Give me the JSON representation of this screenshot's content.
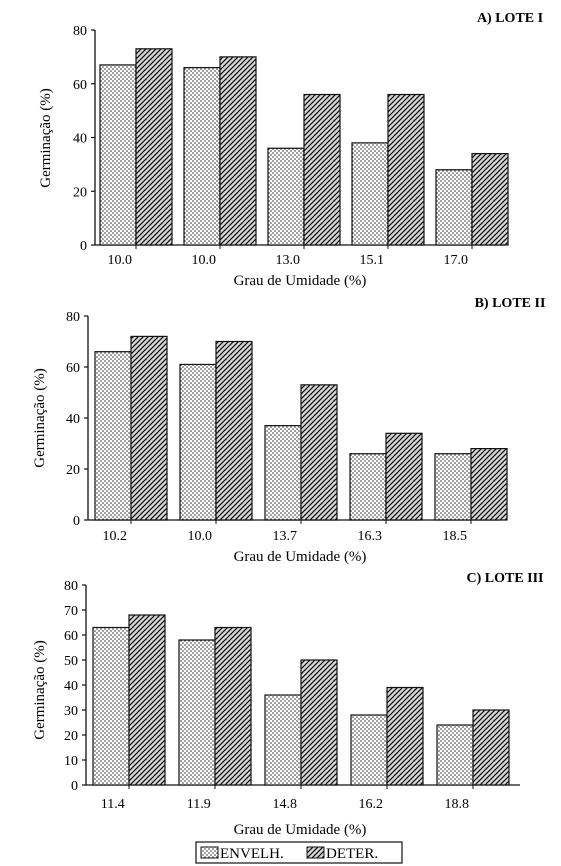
{
  "chart_data": [
    {
      "type": "bar",
      "title": "A) LOTE I",
      "xlabel": "Grau de Umidade (%)",
      "ylabel": "Germinação (%)",
      "ylim": [
        0,
        80
      ],
      "yticks": [
        0,
        20,
        40,
        60,
        80
      ],
      "categories": [
        "10.0",
        "10.0",
        "13.0",
        "15.1",
        "17.0"
      ],
      "series": [
        {
          "name": "ENVELH.",
          "values": [
            67,
            66,
            36,
            38,
            28
          ]
        },
        {
          "name": "DETER.",
          "values": [
            73,
            70,
            56,
            56,
            34
          ]
        }
      ]
    },
    {
      "type": "bar",
      "title": "B) LOTE II",
      "xlabel": "Grau de Umidade (%)",
      "ylabel": "Germinação (%)",
      "ylim": [
        0,
        80
      ],
      "yticks": [
        0,
        20,
        40,
        60,
        80
      ],
      "categories": [
        "10.2",
        "10.0",
        "13.7",
        "16.3",
        "18.5"
      ],
      "series": [
        {
          "name": "ENVELH.",
          "values": [
            66,
            61,
            37,
            26,
            26
          ]
        },
        {
          "name": "DETER.",
          "values": [
            72,
            70,
            53,
            34,
            28
          ]
        }
      ]
    },
    {
      "type": "bar",
      "title": "C) LOTE  III",
      "xlabel": "Grau de Umidade (%)",
      "ylabel": "Germinação (%)",
      "ylim": [
        0,
        80
      ],
      "yticks": [
        0,
        10,
        20,
        30,
        40,
        50,
        60,
        70,
        80
      ],
      "categories": [
        "11.4",
        "11.9",
        "14.8",
        "16.2",
        "18.8"
      ],
      "series": [
        {
          "name": "ENVELH.",
          "values": [
            63,
            58,
            36,
            28,
            24
          ]
        },
        {
          "name": "DETER.",
          "values": [
            68,
            63,
            50,
            39,
            30
          ]
        }
      ]
    }
  ],
  "legend": {
    "position": "bottom-center",
    "items": [
      {
        "label": "ENVELH.",
        "pattern": "dots"
      },
      {
        "label": "DETER.",
        "pattern": "hatch"
      }
    ]
  },
  "colors": {
    "ink": "#111111",
    "background": "#ffffff"
  }
}
